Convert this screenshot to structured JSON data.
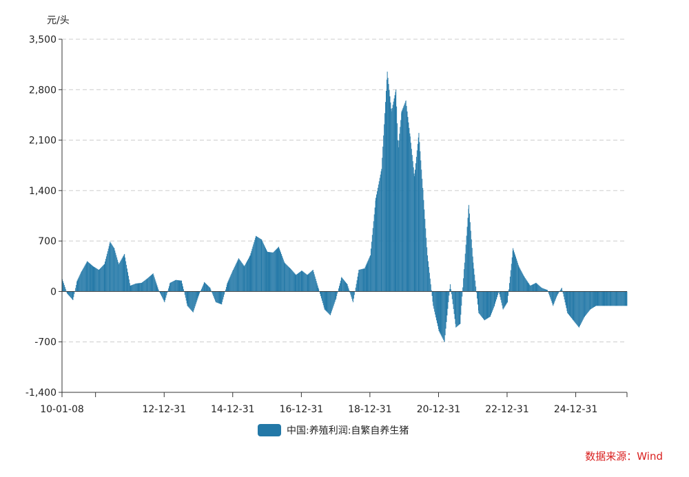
{
  "chart_data": {
    "type": "bar",
    "title": "",
    "ylabel": "元/头",
    "ylim": [
      -1400,
      3500
    ],
    "yticks": [
      -1400,
      -700,
      0,
      700,
      1400,
      2100,
      2800,
      3500
    ],
    "yticklabels": [
      "-1,400",
      "-700",
      "0",
      "700",
      "1,400",
      "2,100",
      "2,800",
      "3,500"
    ],
    "xlim": [
      "2010-01-08",
      "2026-06-30"
    ],
    "xticklabels": [
      {
        "date": "2010-01-08",
        "label": "10-01-08"
      },
      {
        "date": "2010-12-31",
        "label": ""
      },
      {
        "date": "2012-12-31",
        "label": "12-12-31"
      },
      {
        "date": "2014-12-31",
        "label": "14-12-31"
      },
      {
        "date": "2016-12-31",
        "label": "16-12-31"
      },
      {
        "date": "2018-12-31",
        "label": "18-12-31"
      },
      {
        "date": "2020-12-31",
        "label": "20-12-31"
      },
      {
        "date": "2022-12-31",
        "label": "22-12-31"
      },
      {
        "date": "2024-12-31",
        "label": "24-12-31"
      },
      {
        "date": "2026-06-30",
        "label": ""
      }
    ],
    "grid": true,
    "legend_position": "bottom",
    "series": [
      {
        "name": "中国:养殖利润:自繁自养生猪",
        "color": "#2378a7",
        "x": [
          "2010-01-08",
          "2010-03-01",
          "2010-05-01",
          "2010-06-15",
          "2010-08-01",
          "2010-10-01",
          "2010-12-01",
          "2011-02-01",
          "2011-04-01",
          "2011-06-01",
          "2011-07-15",
          "2011-09-01",
          "2011-11-01",
          "2012-01-01",
          "2012-03-01",
          "2012-05-01",
          "2012-07-01",
          "2012-09-01",
          "2012-11-01",
          "2013-01-01",
          "2013-03-01",
          "2013-05-01",
          "2013-07-01",
          "2013-09-01",
          "2013-11-01",
          "2014-01-01",
          "2014-03-01",
          "2014-05-01",
          "2014-07-01",
          "2014-09-01",
          "2014-11-01",
          "2015-01-01",
          "2015-03-01",
          "2015-05-01",
          "2015-07-01",
          "2015-09-01",
          "2015-11-01",
          "2016-01-01",
          "2016-03-01",
          "2016-05-01",
          "2016-07-01",
          "2016-09-01",
          "2016-11-01",
          "2017-01-01",
          "2017-03-01",
          "2017-05-01",
          "2017-07-01",
          "2017-09-01",
          "2017-11-01",
          "2018-01-01",
          "2018-03-01",
          "2018-05-01",
          "2018-07-01",
          "2018-09-01",
          "2018-11-01",
          "2019-01-01",
          "2019-03-01",
          "2019-05-01",
          "2019-07-01",
          "2019-08-15",
          "2019-10-01",
          "2019-10-25",
          "2019-12-01",
          "2020-01-15",
          "2020-03-01",
          "2020-04-15",
          "2020-06-01",
          "2020-07-15",
          "2020-09-01",
          "2020-11-01",
          "2021-01-01",
          "2021-03-01",
          "2021-05-01",
          "2021-07-01",
          "2021-08-15",
          "2021-10-01",
          "2021-11-15",
          "2022-01-01",
          "2022-03-01",
          "2022-05-01",
          "2022-07-01",
          "2022-08-15",
          "2022-10-01",
          "2022-11-15",
          "2023-01-01",
          "2023-03-01",
          "2023-05-01",
          "2023-07-01",
          "2023-09-01",
          "2023-11-01",
          "2024-01-01",
          "2024-03-01",
          "2024-05-01",
          "2024-06-15",
          "2024-08-01",
          "2024-10-01",
          "2024-12-01",
          "2025-02-01",
          "2025-04-01",
          "2025-06-01",
          "2025-08-01",
          "2025-09-15",
          "2025-11-01",
          "2026-01-01",
          "2026-03-01",
          "2026-05-01",
          "2026-06-30"
        ],
        "values": [
          170,
          -30,
          -120,
          150,
          280,
          420,
          350,
          300,
          380,
          690,
          600,
          380,
          520,
          80,
          110,
          120,
          180,
          250,
          10,
          -150,
          120,
          160,
          150,
          -200,
          -290,
          -50,
          130,
          50,
          -150,
          -180,
          120,
          300,
          460,
          350,
          500,
          770,
          720,
          550,
          540,
          620,
          400,
          320,
          230,
          290,
          230,
          300,
          30,
          -250,
          -330,
          -100,
          200,
          100,
          -150,
          300,
          320,
          500,
          1300,
          1700,
          3050,
          2500,
          2800,
          2000,
          2500,
          2650,
          2150,
          1600,
          2200,
          1400,
          500,
          -200,
          -550,
          -700,
          100,
          -500,
          -450,
          400,
          1200,
          400,
          -300,
          -400,
          -350,
          -200,
          0,
          -250,
          -150,
          600,
          350,
          200,
          80,
          120,
          50,
          20,
          -200,
          -50,
          50,
          -300,
          -400,
          -500,
          -350,
          -250,
          -200,
          -200,
          -200,
          -200,
          -200,
          -200,
          -200
        ]
      }
    ]
  },
  "legend": {
    "label": "中国:养殖利润:自繁自养生猪",
    "color": "#2378a7"
  },
  "source": {
    "text": "数据来源：Wind",
    "color": "#d9201f"
  }
}
